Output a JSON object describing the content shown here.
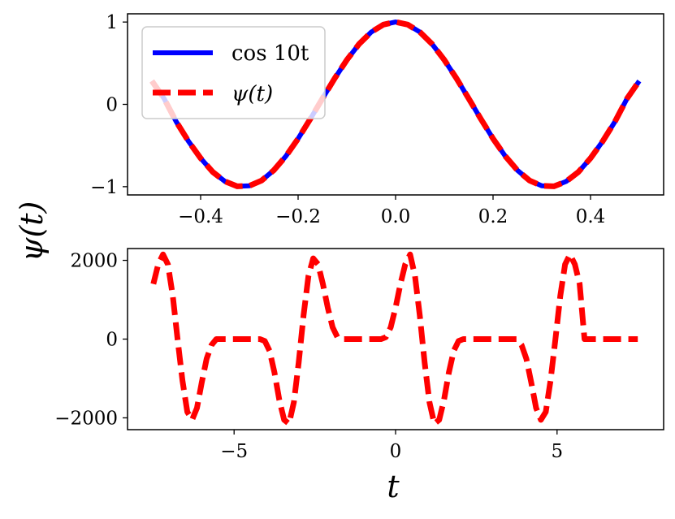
{
  "figure": {
    "ylabel": "ψ(t)",
    "xlabel": "t"
  },
  "chart_data": [
    {
      "type": "line",
      "title": "",
      "xlabel": "",
      "ylabel": "",
      "xlim": [
        -0.55,
        0.55
      ],
      "ylim": [
        -1.1,
        1.1
      ],
      "xticks": [
        -0.4,
        -0.2,
        0.0,
        0.2,
        0.4
      ],
      "xtick_labels": [
        "−0.4",
        "−0.2",
        "0.0",
        "0.2",
        "0.4"
      ],
      "yticks": [
        -1,
        0,
        1
      ],
      "ytick_labels": [
        "−1",
        "0",
        "1"
      ],
      "grid": false,
      "legend_position": "upper-left",
      "series": [
        {
          "name": "cos 10t",
          "color": "#0000ff",
          "style": "solid",
          "x": [
            -0.5,
            -0.475,
            -0.45,
            -0.425,
            -0.4,
            -0.375,
            -0.35,
            -0.325,
            -0.3,
            -0.275,
            -0.25,
            -0.225,
            -0.2,
            -0.175,
            -0.15,
            -0.125,
            -0.1,
            -0.075,
            -0.05,
            -0.025,
            0.0,
            0.025,
            0.05,
            0.075,
            0.1,
            0.125,
            0.15,
            0.175,
            0.2,
            0.225,
            0.25,
            0.275,
            0.3,
            0.325,
            0.35,
            0.375,
            0.4,
            0.425,
            0.45,
            0.475,
            0.5
          ],
          "y": [
            0.284,
            0.071,
            -0.211,
            -0.448,
            -0.654,
            -0.822,
            -0.936,
            -0.995,
            -0.99,
            -0.925,
            -0.801,
            -0.628,
            -0.416,
            -0.178,
            0.071,
            0.315,
            0.54,
            0.732,
            0.878,
            0.969,
            1.0,
            0.969,
            0.878,
            0.732,
            0.54,
            0.315,
            0.071,
            -0.178,
            -0.416,
            -0.628,
            -0.801,
            -0.925,
            -0.99,
            -0.995,
            -0.936,
            -0.822,
            -0.654,
            -0.448,
            -0.211,
            0.071,
            0.284
          ]
        },
        {
          "name": "ψ(t)",
          "color": "#ff0000",
          "style": "dashed",
          "x": [
            -0.5,
            -0.475,
            -0.45,
            -0.425,
            -0.4,
            -0.375,
            -0.35,
            -0.325,
            -0.3,
            -0.275,
            -0.25,
            -0.225,
            -0.2,
            -0.175,
            -0.15,
            -0.125,
            -0.1,
            -0.075,
            -0.05,
            -0.025,
            0.0,
            0.025,
            0.05,
            0.075,
            0.1,
            0.125,
            0.15,
            0.175,
            0.2,
            0.225,
            0.25,
            0.275,
            0.3,
            0.325,
            0.35,
            0.375,
            0.4,
            0.425,
            0.45,
            0.475,
            0.5
          ],
          "y": [
            0.284,
            0.071,
            -0.211,
            -0.448,
            -0.654,
            -0.822,
            -0.936,
            -0.995,
            -0.99,
            -0.925,
            -0.801,
            -0.628,
            -0.416,
            -0.178,
            0.071,
            0.315,
            0.54,
            0.732,
            0.878,
            0.969,
            1.0,
            0.969,
            0.878,
            0.732,
            0.54,
            0.315,
            0.071,
            -0.178,
            -0.416,
            -0.628,
            -0.801,
            -0.925,
            -0.99,
            -0.995,
            -0.936,
            -0.822,
            -0.654,
            -0.448,
            -0.211,
            0.071,
            0.284
          ]
        }
      ]
    },
    {
      "type": "line",
      "title": "",
      "xlabel": "t",
      "ylabel": "",
      "xlim": [
        -8.3,
        8.3
      ],
      "ylim": [
        -2300,
        2300
      ],
      "xticks": [
        -5,
        0,
        5
      ],
      "xtick_labels": [
        "−5",
        "0",
        "5"
      ],
      "yticks": [
        -2000,
        0,
        2000
      ],
      "ytick_labels": [
        "−2000",
        "0",
        "2000"
      ],
      "grid": false,
      "series": [
        {
          "name": "",
          "color": "#ff0000",
          "style": "dashed",
          "x": [
            -7.5,
            -7.35,
            -7.2,
            -7.05,
            -6.9,
            -6.75,
            -6.6,
            -6.45,
            -6.3,
            -6.15,
            -6.0,
            -5.85,
            -5.7,
            -5.55,
            -5.4,
            -5.25,
            -5.1,
            -4.95,
            -4.8,
            -4.65,
            -4.5,
            -4.35,
            -4.2,
            -4.05,
            -3.9,
            -3.75,
            -3.6,
            -3.45,
            -3.3,
            -3.15,
            -3.0,
            -2.85,
            -2.7,
            -2.55,
            -2.4,
            -2.25,
            -2.1,
            -1.95,
            -1.8,
            -1.65,
            -1.5,
            -1.35,
            -1.2,
            -1.05,
            -0.9,
            -0.75,
            -0.6,
            -0.45,
            -0.3,
            -0.15,
            0.0,
            0.15,
            0.3,
            0.45,
            0.6,
            0.75,
            0.9,
            1.05,
            1.2,
            1.35,
            1.5,
            1.65,
            1.8,
            1.95,
            2.1,
            2.25,
            2.4,
            2.55,
            2.7,
            2.85,
            3.0,
            3.15,
            3.3,
            3.45,
            3.6,
            3.75,
            3.9,
            4.05,
            4.2,
            4.35,
            4.5,
            4.65,
            4.8,
            4.95,
            5.1,
            5.25,
            5.4,
            5.55,
            5.7,
            5.85,
            6.0,
            6.15,
            6.3,
            6.45,
            6.6,
            6.75,
            6.9,
            7.05,
            7.2,
            7.35,
            7.5
          ],
          "y": [
            1400,
            1900,
            2150,
            1900,
            1100,
            0,
            -1050,
            -1850,
            -2050,
            -1750,
            -1100,
            -500,
            -150,
            0,
            0,
            0,
            0,
            0,
            0,
            0,
            0,
            0,
            0,
            -50,
            -300,
            -850,
            -1550,
            -2050,
            -2150,
            -1600,
            -600,
            600,
            1600,
            2050,
            1900,
            1400,
            800,
            300,
            50,
            0,
            0,
            0,
            0,
            0,
            0,
            0,
            0,
            0,
            50,
            300,
            800,
            1400,
            1900,
            2150,
            1600,
            600,
            -600,
            -1600,
            -2150,
            -2050,
            -1550,
            -850,
            -300,
            -50,
            0,
            0,
            0,
            0,
            0,
            0,
            0,
            0,
            0,
            0,
            0,
            0,
            -150,
            -500,
            -1100,
            -1750,
            -2050,
            -1850,
            -1050,
            0,
            1100,
            1900,
            2150,
            1900,
            1400,
            0,
            0,
            0,
            0,
            0,
            0,
            0,
            0,
            0,
            0,
            0,
            0
          ]
        }
      ]
    }
  ]
}
